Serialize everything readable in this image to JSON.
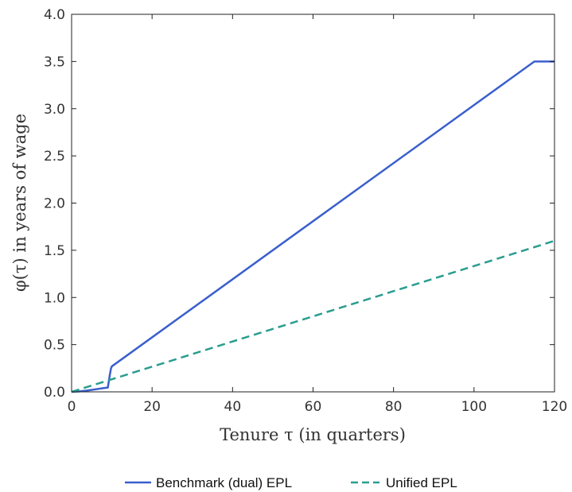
{
  "chart_data": {
    "type": "line",
    "xlabel": "Tenure τ (in quarters)",
    "ylabel": "φ(τ) in years of wage",
    "xlim": [
      0,
      120
    ],
    "ylim": [
      0,
      4
    ],
    "x_ticks": [
      "0",
      "20",
      "40",
      "60",
      "80",
      "100",
      "120"
    ],
    "y_ticks": [
      "0.0",
      "0.5",
      "1.0",
      "1.5",
      "2.0",
      "2.5",
      "3.0",
      "3.5",
      "4.0"
    ],
    "grid": false,
    "legend_position": "bottom",
    "series": [
      {
        "name": "Benchmark (dual) EPL",
        "color": "#3a5fcd",
        "style": "solid",
        "x": [
          0,
          2,
          4,
          8,
          9,
          9.5,
          9.8,
          10,
          115,
          116,
          120
        ],
        "y": [
          0,
          0.005,
          0.015,
          0.04,
          0.045,
          0.18,
          0.25,
          0.27,
          3.5,
          3.5,
          3.5
        ]
      },
      {
        "name": "Unified EPL",
        "color": "#2a9d8f",
        "style": "dashed",
        "x": [
          0,
          120
        ],
        "y": [
          0,
          1.6
        ]
      }
    ]
  }
}
